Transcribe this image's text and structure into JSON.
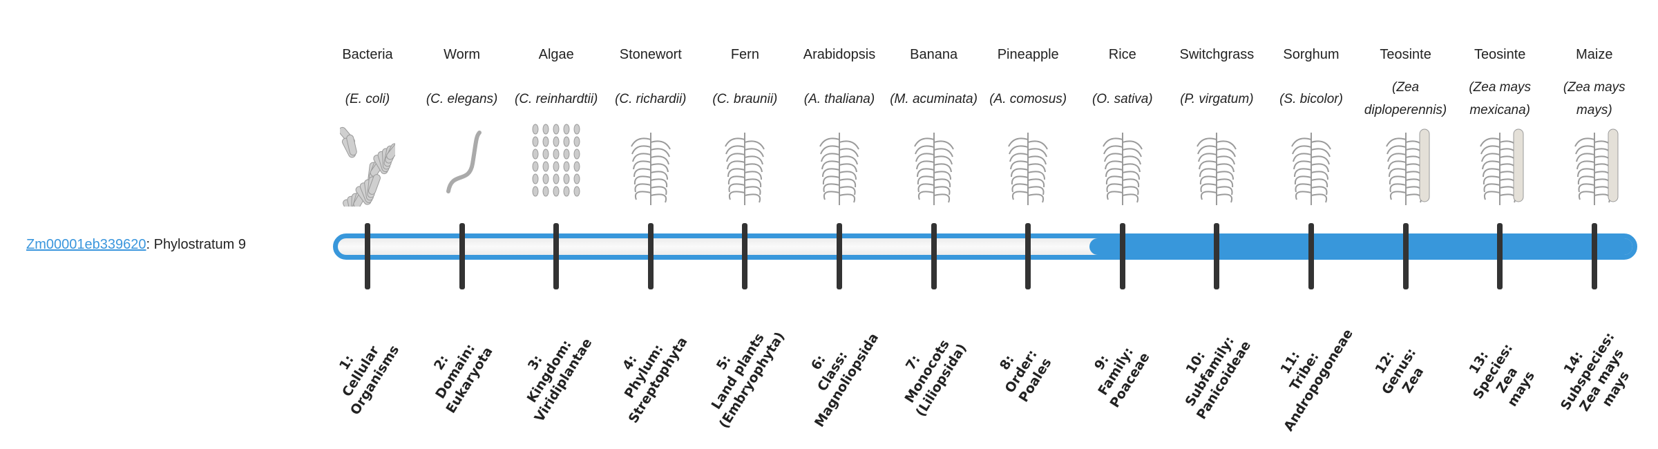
{
  "gene": {
    "id": "Zm00001eb339620",
    "suffix": ": Phylostratum 9"
  },
  "phylostratum": 9,
  "total_strata": 14,
  "colors": {
    "accent": "#3897db",
    "tick": "#333333",
    "link": "#3a96dd"
  },
  "strata": [
    {
      "common": "Bacteria",
      "scientific": "(E. coli)",
      "icon": "bacteria-illustration",
      "rank": [
        "1:",
        "Cellular",
        "Organisms"
      ]
    },
    {
      "common": "Worm",
      "scientific": "(C. elegans)",
      "icon": "worm-illustration",
      "rank": [
        "2:",
        "Domain:",
        "Eukaryota"
      ]
    },
    {
      "common": "Algae",
      "scientific": "(C. reinhardtii)",
      "icon": "algae-illustration",
      "rank": [
        "3:",
        "Kingdom:",
        "Viridiplantae"
      ]
    },
    {
      "common": "Stonewort",
      "scientific": "(C. richardii)",
      "icon": "stonewort-illustration",
      "rank": [
        "4:",
        "Phylum:",
        "Streptophyta"
      ]
    },
    {
      "common": "Fern",
      "scientific": "(C. braunii)",
      "icon": "fern-illustration",
      "rank": [
        "5:",
        "Land plants",
        "(Embryophyta)"
      ]
    },
    {
      "common": "Arabidopsis",
      "scientific": "(A. thaliana)",
      "icon": "arabidopsis-illustration",
      "rank": [
        "6:",
        "Class:",
        "Magnoliopsida"
      ]
    },
    {
      "common": "Banana",
      "scientific": "(M. acuminata)",
      "icon": "banana-illustration",
      "rank": [
        "7:",
        "Monocots",
        "(Liliopsida)"
      ]
    },
    {
      "common": "Pineapple",
      "scientific": "(A. comosus)",
      "icon": "pineapple-illustration",
      "rank": [
        "8:",
        "Order:",
        "Poales"
      ]
    },
    {
      "common": "Rice",
      "scientific": "(O. sativa)",
      "icon": "rice-illustration",
      "rank": [
        "9:",
        "Family:",
        "Poaceae"
      ]
    },
    {
      "common": "Switchgrass",
      "scientific": "(P. virgatum)",
      "icon": "switchgrass-illustration",
      "rank": [
        "10:",
        "Subfamily:",
        "Panicoideae"
      ]
    },
    {
      "common": "Sorghum",
      "scientific": "(S. bicolor)",
      "icon": "sorghum-illustration",
      "rank": [
        "11:",
        "Tribe:",
        "Andropogoneae"
      ]
    },
    {
      "common": "Teosinte",
      "scientific": "(Zea diploperennis)",
      "icon": "teosinte-illustration",
      "rank": [
        "12:",
        "Genus:",
        "Zea"
      ]
    },
    {
      "common": "Teosinte",
      "scientific": "(Zea mays mexicana)",
      "icon": "teosinte-mexicana-illustration",
      "rank": [
        "13:",
        "Species:",
        "Zea",
        "mays"
      ]
    },
    {
      "common": "Maize",
      "scientific": "(Zea mays mays)",
      "icon": "maize-illustration",
      "rank": [
        "14:",
        "Subspecies:",
        "Zea mays",
        "mays"
      ]
    }
  ]
}
